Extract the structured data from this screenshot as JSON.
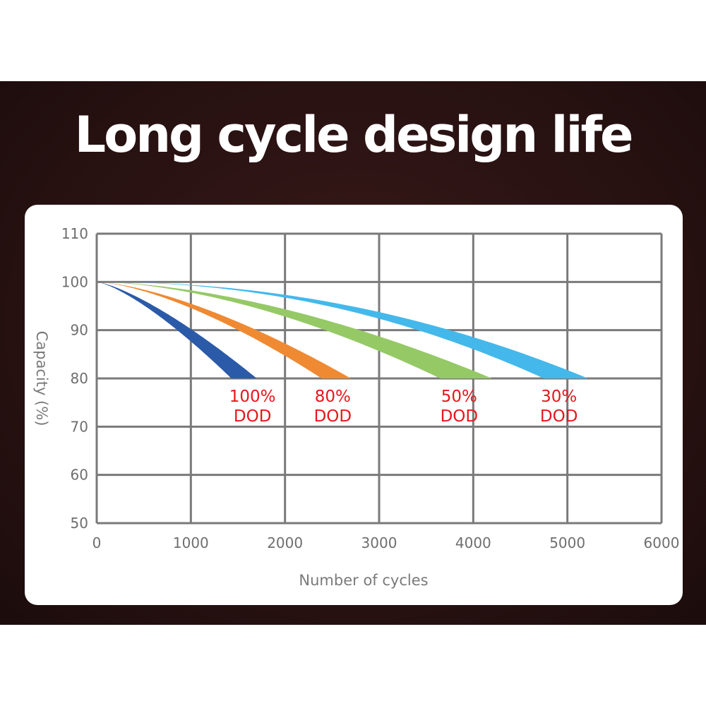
{
  "title": "Long cycle design life",
  "chart_data": {
    "type": "area",
    "title": "Long cycle design life",
    "xlabel": "Number of cycles",
    "ylabel": "Capacity (%)",
    "xlim": [
      0,
      6000
    ],
    "ylim": [
      50,
      110
    ],
    "xticks": [
      0,
      1000,
      2000,
      3000,
      4000,
      5000,
      6000
    ],
    "yticks": [
      50,
      60,
      70,
      80,
      90,
      100,
      110
    ],
    "grid": true,
    "series": [
      {
        "name": "100% DOD",
        "label_lines": [
          "100%",
          "DOD"
        ],
        "color": "#2b5aa8",
        "start": [
          0,
          100
        ],
        "end_capacity": 80,
        "end_cycles_range": [
          1430,
          1700
        ]
      },
      {
        "name": "80% DOD",
        "label_lines": [
          "80%",
          "DOD"
        ],
        "color": "#ef8a33",
        "start": [
          0,
          100
        ],
        "end_capacity": 80,
        "end_cycles_range": [
          2390,
          2700
        ]
      },
      {
        "name": "50% DOD",
        "label_lines": [
          "50%",
          "DOD"
        ],
        "color": "#95c966",
        "start": [
          0,
          100
        ],
        "end_capacity": 80,
        "end_cycles_range": [
          3650,
          4200
        ]
      },
      {
        "name": "30% DOD",
        "label_lines": [
          "30%",
          "DOD"
        ],
        "color": "#44b8ea",
        "start": [
          0,
          100
        ],
        "end_capacity": 80,
        "end_cycles_range": [
          4750,
          5220
        ]
      }
    ],
    "label_color": "#e8161b"
  }
}
